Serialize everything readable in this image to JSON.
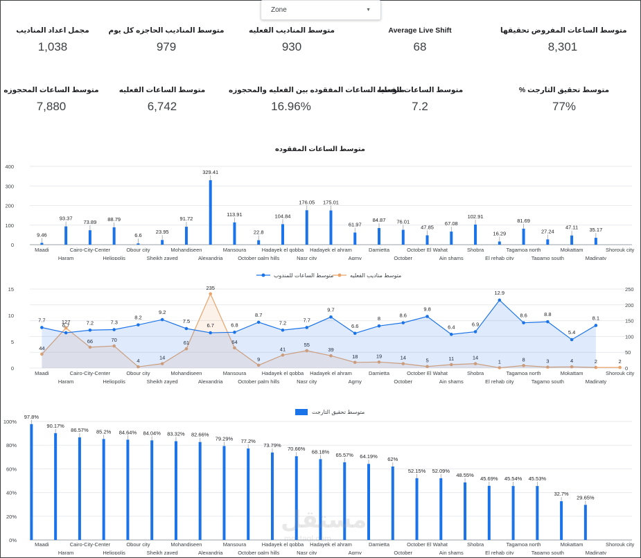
{
  "filter": {
    "label": "Zone"
  },
  "kpis_row1": [
    {
      "label": "مجمل اعداد المناديب",
      "value": "1,038"
    },
    {
      "label": "متوسط المناديب الحاجزه كل يوم",
      "value": "979"
    },
    {
      "label": "متوسط المناديب الفعليه",
      "value": "930"
    },
    {
      "label": "Average Live Shift",
      "value": "68"
    },
    {
      "label": "متوسط الساعات المفروض تحقيقها",
      "value": "8,301"
    }
  ],
  "kpis_row2": [
    {
      "label": "متوسط الساعات المحجوزه",
      "value": "7,880"
    },
    {
      "label": "متوسط الساعات الفعليه",
      "value": "6,742"
    },
    {
      "label": "متوسط الساعات المفقوده بين الفعليه والمحجوزه",
      "value": "16.96%"
    },
    {
      "label": "متوسط الساعات الفعليه",
      "value": "7.2"
    },
    {
      "label": "% متوسط تحقيق التارجت",
      "value": "77%"
    }
  ],
  "watermark": {
    "main": "مستقل",
    "sub": "mostaql.com"
  },
  "colors": {
    "blue": "#1a73e8",
    "orange": "#e8a46b",
    "grid": "#e8eaed",
    "text": "#3c4043"
  },
  "chart_data": [
    {
      "type": "bar",
      "title": "متوسط الساعات المفقوده",
      "categories": [
        "Maadi",
        "Haram",
        "Cairo-City-Center",
        "Heliopolis",
        "Obour city",
        "Sheikh zayed",
        "Mohandiseen",
        "Alexandria",
        "Mansoura",
        "October palm hills",
        "Hadayek el qobba",
        "Nasr city",
        "Hadayek el ahram",
        "Agmy",
        "Damietta",
        "October",
        "October El Wahat",
        "Ain shams",
        "Shobra",
        "El rehab city",
        "Tagamoa north",
        "Tagamo south",
        "Mokattam",
        "Madinaty",
        "Shorouk city"
      ],
      "values": [
        9.46,
        93.37,
        73.89,
        88.79,
        6.6,
        23.95,
        91.72,
        329.41,
        113.91,
        22.8,
        104.84,
        176.05,
        175.01,
        61.97,
        84.87,
        76.01,
        47.85,
        67.08,
        102.91,
        16.29,
        81.69,
        27.24,
        47.11,
        35.17,
        null
      ],
      "data_labels": [
        "9.46",
        "93.37",
        "73.89",
        "88.79",
        "6.6",
        "23.95",
        "91.72",
        "329.41",
        "113.91",
        "22.8",
        "104.84",
        "176.05",
        "175.01",
        "61.97",
        "84.87",
        "76.01",
        "47.85",
        "67.08",
        "102.91",
        "16.29",
        "81.69",
        "27.24",
        "47.11",
        "35.17",
        ""
      ],
      "ylim": [
        0,
        400
      ],
      "yticks": [
        "0",
        "100",
        "200",
        "300",
        "400"
      ]
    },
    {
      "type": "line",
      "categories": [
        "Maadi",
        "Haram",
        "Cairo-City-Center",
        "Heliopolis",
        "Obour city",
        "Sheikh zayed",
        "Mohandiseen",
        "Alexandria",
        "Mansoura",
        "October palm hills",
        "Hadayek el qobba",
        "Nasr city",
        "Hadayek el ahram",
        "Agmy",
        "Damietta",
        "October",
        "October El Wahat",
        "Ain shams",
        "Shobra",
        "El rehab city",
        "Tagamoa north",
        "Tagamo south",
        "Mokattam",
        "Madinaty",
        "Shorouk city"
      ],
      "series": [
        {
          "name": "متوسط الساعات للمندوب",
          "axis": "left",
          "values": [
            7.7,
            6.7,
            7.2,
            7.3,
            8.2,
            9.2,
            7.5,
            6.7,
            6.8,
            8.7,
            7.2,
            7.7,
            9.7,
            6.6,
            8,
            8.6,
            9.8,
            6.4,
            6.9,
            12.9,
            8.6,
            8.8,
            5.4,
            8.1,
            null
          ],
          "data_labels": [
            "7.7",
            "6.7",
            "7.2",
            "7.3",
            "8.2",
            "9.2",
            "7.5",
            "6.7",
            "6.8",
            "8.7",
            "7.2",
            "7.7",
            "9.7",
            "6.6",
            "8",
            "8.6",
            "9.8",
            "6.4",
            "6.9",
            "12.9",
            "8.6",
            "8.8",
            "5.4",
            "8.1",
            ""
          ]
        },
        {
          "name": "متوسط مناديب الفعليه",
          "axis": "right",
          "values": [
            44,
            127,
            66,
            70,
            4,
            14,
            61,
            235,
            64,
            9,
            41,
            55,
            39,
            18,
            19,
            14,
            5,
            11,
            14,
            1,
            8,
            3,
            4,
            2,
            2
          ],
          "data_labels": [
            "44",
            "127",
            "66",
            "70",
            "4",
            "14",
            "61",
            "235",
            "64",
            "9",
            "41",
            "55",
            "39",
            "18",
            "19",
            "14",
            "5",
            "11",
            "14",
            "1",
            "8",
            "3",
            "4",
            "2",
            "2"
          ]
        }
      ],
      "ylim_left": [
        0,
        15
      ],
      "yticks_left": [
        "0",
        "5",
        "10",
        "15"
      ],
      "ylim_right": [
        0,
        250
      ],
      "yticks_right": [
        "0",
        "50",
        "100",
        "150",
        "200",
        "250"
      ],
      "legend": "top"
    },
    {
      "type": "bar",
      "legend_label": "متوسط تحقيق التارجت",
      "categories": [
        "Maadi",
        "Haram",
        "Cairo-City-Center",
        "Heliopolis",
        "Obour city",
        "Sheikh zayed",
        "Mohandiseen",
        "Alexandria",
        "Mansoura",
        "October palm hills",
        "Hadayek el qobba",
        "Nasr city",
        "Hadayek el ahram",
        "Agmy",
        "Damietta",
        "October",
        "October El Wahat",
        "Ain shams",
        "Shobra",
        "El rehab city",
        "Tagamoa north",
        "Tagamo south",
        "Mokattam",
        "Madinaty",
        "Shorouk city"
      ],
      "values": [
        97.8,
        90.17,
        86.57,
        85.2,
        84.64,
        84.04,
        83.32,
        82.66,
        79.29,
        77.2,
        73.79,
        70.66,
        68.18,
        65.57,
        64.19,
        62,
        52.15,
        52.09,
        48.55,
        45.69,
        45.54,
        45.53,
        32.7,
        29.65,
        null
      ],
      "data_labels": [
        "97.8%",
        "90.17%",
        "86.57%",
        "85.2%",
        "84.64%",
        "84.04%",
        "83.32%",
        "82.66%",
        "79.29%",
        "77.2%",
        "73.79%",
        "70.66%",
        "68.18%",
        "65.57%",
        "64.19%",
        "62%",
        "52.15%",
        "52.09%",
        "48.55%",
        "45.69%",
        "45.54%",
        "45.53%",
        "32.7%",
        "29.65%",
        ""
      ],
      "ylim": [
        0,
        100
      ],
      "yticks": [
        "0%",
        "20%",
        "40%",
        "60%",
        "80%",
        "100%"
      ],
      "legend": "top"
    }
  ]
}
